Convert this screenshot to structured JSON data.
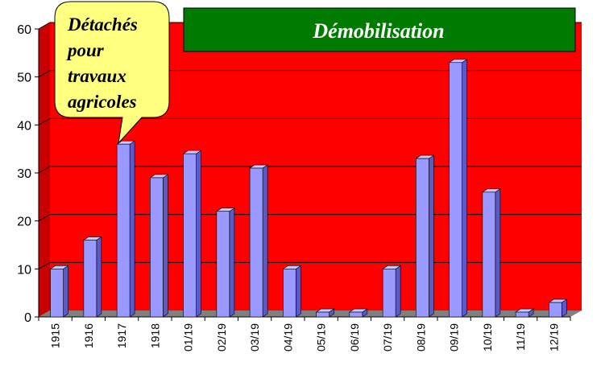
{
  "chart_data": {
    "type": "bar",
    "title": "Démobilisation",
    "annotation": [
      "Détachés",
      "pour",
      "travaux",
      "agricoles"
    ],
    "categories": [
      "1915",
      "1916",
      "1917",
      "1918",
      "01/19",
      "02/19",
      "03/19",
      "04/19",
      "05/19",
      "06/19",
      "07/19",
      "08/19",
      "09/19",
      "10/19",
      "11/19",
      "12/19"
    ],
    "values": [
      10,
      16,
      36,
      29,
      34,
      22,
      31,
      10,
      1,
      1,
      10,
      33,
      53,
      26,
      1,
      3
    ],
    "ylim": [
      0,
      60
    ],
    "yticks": [
      0,
      10,
      20,
      30,
      40,
      50,
      60
    ],
    "xlabel": "",
    "ylabel": "",
    "grid": true,
    "colors": {
      "plot_background": "#ff0000",
      "bar_front": "#9999ff",
      "bar_side": "#5a5ac8",
      "bar_top": "#c8c8ff",
      "floor": "#808080",
      "gridline": "#000000",
      "title_box": "#007a00",
      "title_text": "#ffffff",
      "callout_fill": "#ffff80"
    }
  }
}
